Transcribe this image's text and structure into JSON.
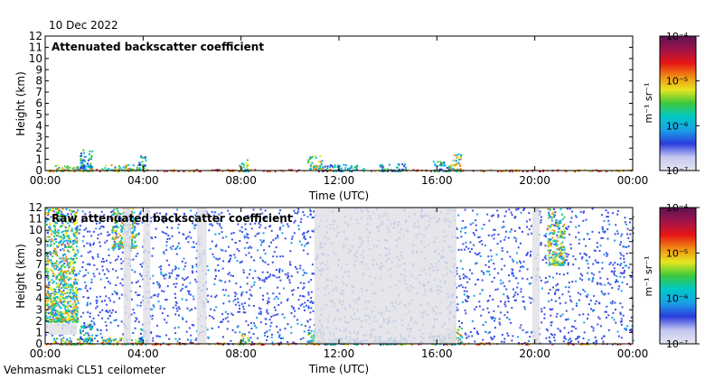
{
  "date": "10 Dec 2022",
  "footer": "Vehmasmaki CL51 ceilometer",
  "colors": {
    "colorbar_stops": [
      "#e6e6f0",
      "#c4c8f0",
      "#2a3cdc",
      "#1aa0e6",
      "#00c8c8",
      "#3cc83c",
      "#e6e61e",
      "#f08c14",
      "#e61414",
      "#a0144b",
      "#5a1450"
    ],
    "noise": "#3c50e6",
    "gap": "#e0e0e6"
  },
  "chart_data": [
    {
      "type": "heatmap",
      "title": "Attenuated backscatter coefficient",
      "xlabel": "Time (UTC)",
      "ylabel": "Height (km)",
      "xlim": [
        "00:00",
        "24:00"
      ],
      "ylim": [
        0,
        12
      ],
      "x_ticks": [
        "00:00",
        "04:00",
        "08:00",
        "12:00",
        "16:00",
        "20:00",
        "00:00"
      ],
      "y_ticks": [
        "0",
        "1",
        "2",
        "3",
        "4",
        "5",
        "6",
        "7",
        "8",
        "9",
        "10",
        "11",
        "12"
      ],
      "colorbar": {
        "label": "m⁻¹ sr⁻¹",
        "scale": "log",
        "range": [
          1e-07,
          0.0001
        ],
        "ticks": [
          "10⁻⁴",
          "10⁻⁵",
          "10⁻⁶",
          "10⁻⁷"
        ]
      },
      "features": [
        {
          "time": [
            0.0,
            24.0
          ],
          "height": [
            0.0,
            0.15
          ],
          "level": "high"
        },
        {
          "time": [
            0.3,
            2.0
          ],
          "height": [
            0.0,
            0.6
          ],
          "level": "mid"
        },
        {
          "time": [
            1.4,
            1.9
          ],
          "height": [
            0.3,
            1.9
          ],
          "level": "low"
        },
        {
          "time": [
            2.3,
            4.1
          ],
          "height": [
            0.0,
            0.6
          ],
          "level": "mid"
        },
        {
          "time": [
            3.8,
            4.1
          ],
          "height": [
            0.3,
            1.4
          ],
          "level": "low"
        },
        {
          "time": [
            7.9,
            8.3
          ],
          "height": [
            0.0,
            1.1
          ],
          "level": "mid"
        },
        {
          "time": [
            10.7,
            11.3
          ],
          "height": [
            0.2,
            1.4
          ],
          "level": "mid"
        },
        {
          "time": [
            11.3,
            13.0
          ],
          "height": [
            0.0,
            0.6
          ],
          "level": "low"
        },
        {
          "time": [
            13.6,
            14.7
          ],
          "height": [
            0.0,
            0.7
          ],
          "level": "low"
        },
        {
          "time": [
            15.8,
            16.5
          ],
          "height": [
            0.0,
            0.9
          ],
          "level": "low"
        },
        {
          "time": [
            16.5,
            17.0
          ],
          "height": [
            0.0,
            1.6
          ],
          "level": "mid"
        }
      ]
    },
    {
      "type": "heatmap",
      "title": "Raw attenuated backscatter coefficient",
      "xlabel": "Time (UTC)",
      "ylabel": "Height (km)",
      "xlim": [
        "00:00",
        "24:00"
      ],
      "ylim": [
        0,
        12
      ],
      "x_ticks": [
        "00:00",
        "04:00",
        "08:00",
        "12:00",
        "16:00",
        "20:00",
        "00:00"
      ],
      "y_ticks": [
        "0",
        "1",
        "2",
        "3",
        "4",
        "5",
        "6",
        "7",
        "8",
        "9",
        "10",
        "11",
        "12"
      ],
      "colorbar": {
        "label": "m⁻¹ sr⁻¹",
        "scale": "log",
        "range": [
          1e-07,
          0.0001
        ],
        "ticks": [
          "10⁻⁴",
          "10⁻⁵",
          "10⁻⁶",
          "10⁻⁷"
        ]
      },
      "features": [
        {
          "time": [
            0.0,
            24.0
          ],
          "height": [
            0.0,
            0.15
          ],
          "level": "high"
        },
        {
          "time": [
            0.0,
            1.3
          ],
          "height": [
            2.0,
            12.0
          ],
          "level": "mid"
        },
        {
          "time": [
            2.7,
            3.7
          ],
          "height": [
            8.5,
            12.0
          ],
          "level": "mid"
        },
        {
          "time": [
            20.5,
            21.2
          ],
          "height": [
            7.0,
            12.0
          ],
          "level": "mid"
        },
        {
          "time": [
            0.3,
            2.0
          ],
          "height": [
            0.0,
            0.6
          ],
          "level": "mid"
        },
        {
          "time": [
            1.4,
            1.9
          ],
          "height": [
            0.3,
            1.9
          ],
          "level": "low"
        },
        {
          "time": [
            2.3,
            4.1
          ],
          "height": [
            0.0,
            0.6
          ],
          "level": "mid"
        },
        {
          "time": [
            3.8,
            4.1
          ],
          "height": [
            0.3,
            1.4
          ],
          "level": "low"
        },
        {
          "time": [
            7.9,
            8.3
          ],
          "height": [
            0.0,
            1.1
          ],
          "level": "mid"
        },
        {
          "time": [
            10.7,
            11.3
          ],
          "height": [
            0.2,
            1.4
          ],
          "level": "mid"
        },
        {
          "time": [
            11.3,
            13.0
          ],
          "height": [
            0.0,
            0.6
          ],
          "level": "low"
        },
        {
          "time": [
            13.6,
            14.7
          ],
          "height": [
            0.0,
            0.7
          ],
          "level": "low"
        },
        {
          "time": [
            15.8,
            16.5
          ],
          "height": [
            0.0,
            0.9
          ],
          "level": "low"
        },
        {
          "time": [
            16.5,
            17.0
          ],
          "height": [
            0.0,
            1.6
          ],
          "level": "mid"
        }
      ],
      "gaps": [
        {
          "time": [
            0.0,
            1.3
          ],
          "height": [
            0.8,
            1.8
          ]
        },
        {
          "time": [
            11.0,
            16.8
          ],
          "height": [
            0.0,
            12.0
          ]
        },
        {
          "time": [
            3.2,
            3.5
          ],
          "height": [
            0.0,
            12.0
          ]
        },
        {
          "time": [
            6.2,
            6.6
          ],
          "height": [
            0.0,
            12.0
          ]
        },
        {
          "time": [
            4.0,
            4.3
          ],
          "height": [
            0.0,
            12.0
          ]
        },
        {
          "time": [
            19.9,
            20.2
          ],
          "height": [
            0.0,
            12.0
          ]
        }
      ]
    }
  ]
}
